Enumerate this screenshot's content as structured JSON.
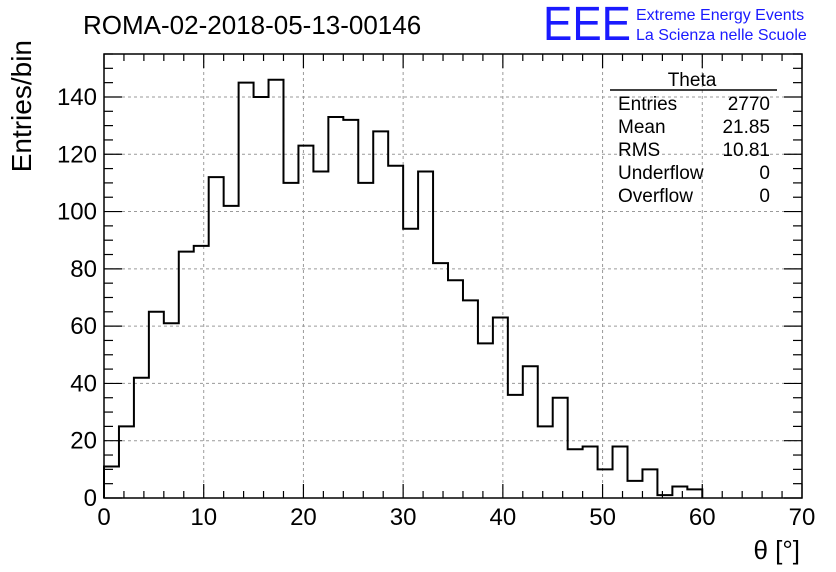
{
  "chart_data": {
    "type": "bar",
    "title": "ROMA-02-2018-05-13-00146",
    "xlabel": "θ [°]",
    "ylabel": "Entries/bin",
    "xlim": [
      0,
      70
    ],
    "ylim": [
      0,
      155
    ],
    "x_ticks": [
      0,
      10,
      20,
      30,
      40,
      50,
      60,
      70
    ],
    "y_ticks": [
      0,
      20,
      40,
      60,
      80,
      100,
      120,
      140
    ],
    "grid": true,
    "histogram": {
      "bin_width": 1.5,
      "bin_start": 0,
      "values": [
        11,
        25,
        42,
        65,
        61,
        86,
        88,
        112,
        102,
        145,
        140,
        146,
        110,
        123,
        114,
        133,
        132,
        110,
        128,
        116,
        94,
        114,
        82,
        76,
        69,
        54,
        63,
        36,
        46,
        25,
        35,
        17,
        18,
        10,
        18,
        6,
        10,
        1,
        4,
        3
      ]
    },
    "stats": {
      "title": "Theta",
      "rows": [
        {
          "label": "Entries",
          "value": "2770"
        },
        {
          "label": "Mean",
          "value": "21.85"
        },
        {
          "label": "RMS",
          "value": "10.81"
        },
        {
          "label": "Underflow",
          "value": "0"
        },
        {
          "label": "Overflow",
          "value": "0"
        }
      ]
    },
    "logo": {
      "mark": "EEE",
      "line1": "Extreme Energy Events",
      "line2": "La Scienza nelle Scuole",
      "color": "#1a1aff"
    },
    "colors": {
      "line": "#000000",
      "grid": "#9a9a9a"
    }
  }
}
